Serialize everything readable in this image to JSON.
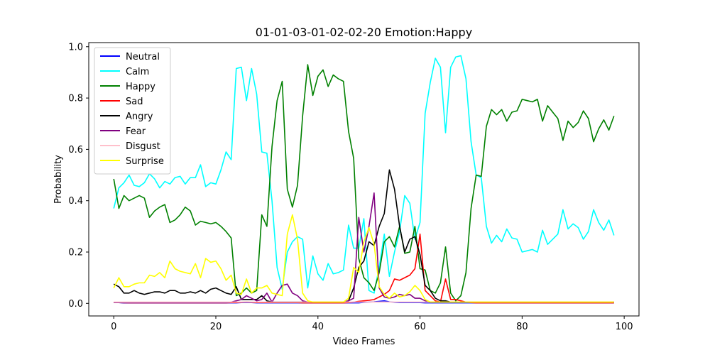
{
  "chart_data": {
    "type": "line",
    "title": "01-01-03-01-02-02-20 Emotion:Happy",
    "xlabel": "Video Frames",
    "ylabel": "Probability",
    "xlim": [
      -4.9,
      102.9
    ],
    "ylim": [
      -0.049,
      1.016
    ],
    "xticks": [
      0,
      20,
      40,
      60,
      80,
      100
    ],
    "yticks": [
      0.0,
      0.2,
      0.4,
      0.6,
      0.8,
      1.0
    ],
    "xtick_labels": [
      "0",
      "20",
      "40",
      "60",
      "80",
      "100"
    ],
    "ytick_labels": [
      "0.0",
      "0.2",
      "0.4",
      "0.6",
      "0.8",
      "1.0"
    ],
    "grid": false,
    "legend_position": "upper-left",
    "series": [
      {
        "name": "Neutral",
        "color": "#0000ff",
        "values": [
          0.003,
          0.003,
          0.002,
          0.002,
          0.002,
          0.002,
          0.002,
          0.002,
          0.002,
          0.002,
          0.002,
          0.002,
          0.002,
          0.002,
          0.002,
          0.002,
          0.002,
          0.002,
          0.002,
          0.002,
          0.002,
          0.002,
          0.002,
          0.002,
          0.002,
          0.003,
          0.003,
          0.003,
          0.002,
          0.002,
          0.002,
          0.002,
          0.002,
          0.002,
          0.002,
          0.002,
          0.002,
          0.002,
          0.002,
          0.002,
          0.002,
          0.002,
          0.002,
          0.002,
          0.002,
          0.002,
          0.002,
          0.002,
          0.002,
          0.004,
          0.005,
          0.006,
          0.008,
          0.01,
          0.006,
          0.004,
          0.003,
          0.003,
          0.003,
          0.003,
          0.003,
          0.002,
          0.002,
          0.002,
          0.002,
          0.002,
          0.002,
          0.002,
          0.002,
          0.002,
          0.002,
          0.002,
          0.002,
          0.002,
          0.002,
          0.002,
          0.002,
          0.002,
          0.002,
          0.002,
          0.002,
          0.002,
          0.002,
          0.002,
          0.002,
          0.002,
          0.002,
          0.002,
          0.002,
          0.002,
          0.002,
          0.002,
          0.002,
          0.002,
          0.002,
          0.002,
          0.002,
          0.002,
          0.002
        ]
      },
      {
        "name": "Calm",
        "color": "#00ffff",
        "values": [
          0.37,
          0.45,
          0.47,
          0.5,
          0.46,
          0.455,
          0.47,
          0.505,
          0.485,
          0.45,
          0.475,
          0.465,
          0.49,
          0.495,
          0.465,
          0.49,
          0.49,
          0.54,
          0.455,
          0.47,
          0.465,
          0.52,
          0.59,
          0.56,
          0.915,
          0.92,
          0.79,
          0.915,
          0.815,
          0.59,
          0.585,
          0.4,
          0.14,
          0.055,
          0.2,
          0.24,
          0.26,
          0.25,
          0.06,
          0.185,
          0.115,
          0.09,
          0.155,
          0.115,
          0.12,
          0.13,
          0.305,
          0.215,
          0.215,
          0.33,
          0.05,
          0.04,
          0.14,
          0.27,
          0.105,
          0.2,
          0.28,
          0.42,
          0.39,
          0.25,
          0.315,
          0.74,
          0.86,
          0.955,
          0.92,
          0.665,
          0.92,
          0.96,
          0.965,
          0.875,
          0.63,
          0.5,
          0.49,
          0.3,
          0.235,
          0.265,
          0.24,
          0.29,
          0.255,
          0.25,
          0.2,
          0.205,
          0.21,
          0.2,
          0.285,
          0.23,
          0.25,
          0.27,
          0.365,
          0.29,
          0.31,
          0.295,
          0.25,
          0.28,
          0.365,
          0.315,
          0.285,
          0.325,
          0.265
        ]
      },
      {
        "name": "Happy",
        "color": "#008000",
        "values": [
          0.485,
          0.37,
          0.42,
          0.4,
          0.41,
          0.42,
          0.41,
          0.335,
          0.36,
          0.375,
          0.385,
          0.315,
          0.325,
          0.345,
          0.375,
          0.36,
          0.305,
          0.32,
          0.315,
          0.31,
          0.315,
          0.3,
          0.28,
          0.255,
          0.03,
          0.04,
          0.06,
          0.04,
          0.05,
          0.345,
          0.3,
          0.61,
          0.79,
          0.865,
          0.445,
          0.375,
          0.46,
          0.73,
          0.93,
          0.81,
          0.885,
          0.91,
          0.845,
          0.89,
          0.875,
          0.865,
          0.67,
          0.565,
          0.175,
          0.1,
          0.08,
          0.05,
          0.12,
          0.24,
          0.26,
          0.22,
          0.3,
          0.195,
          0.2,
          0.3,
          0.135,
          0.13,
          0.05,
          0.04,
          0.08,
          0.22,
          0.04,
          0.01,
          0.03,
          0.12,
          0.37,
          0.5,
          0.495,
          0.69,
          0.755,
          0.735,
          0.755,
          0.71,
          0.745,
          0.75,
          0.795,
          0.79,
          0.785,
          0.795,
          0.71,
          0.77,
          0.745,
          0.72,
          0.635,
          0.71,
          0.685,
          0.705,
          0.75,
          0.72,
          0.63,
          0.68,
          0.715,
          0.675,
          0.73
        ]
      },
      {
        "name": "Sad",
        "color": "#ff0000",
        "values": [
          0.003,
          0.003,
          0.003,
          0.002,
          0.002,
          0.002,
          0.002,
          0.002,
          0.002,
          0.002,
          0.002,
          0.002,
          0.002,
          0.002,
          0.002,
          0.002,
          0.002,
          0.002,
          0.002,
          0.002,
          0.002,
          0.002,
          0.002,
          0.003,
          0.003,
          0.004,
          0.005,
          0.004,
          0.003,
          0.003,
          0.003,
          0.003,
          0.003,
          0.003,
          0.003,
          0.003,
          0.003,
          0.002,
          0.002,
          0.002,
          0.002,
          0.002,
          0.002,
          0.002,
          0.002,
          0.002,
          0.003,
          0.005,
          0.008,
          0.01,
          0.012,
          0.015,
          0.025,
          0.035,
          0.05,
          0.095,
          0.09,
          0.1,
          0.11,
          0.135,
          0.27,
          0.05,
          0.03,
          0.01,
          0.005,
          0.095,
          0.015,
          0.015,
          0.01,
          0.005,
          0.003,
          0.002,
          0.002,
          0.002,
          0.002,
          0.002,
          0.002,
          0.002,
          0.002,
          0.002,
          0.002,
          0.002,
          0.002,
          0.002,
          0.002,
          0.002,
          0.002,
          0.002,
          0.002,
          0.002,
          0.002,
          0.002,
          0.002,
          0.002,
          0.002,
          0.002,
          0.002,
          0.002,
          0.002
        ]
      },
      {
        "name": "Angry",
        "color": "#000000",
        "values": [
          0.075,
          0.065,
          0.04,
          0.04,
          0.05,
          0.04,
          0.035,
          0.04,
          0.045,
          0.045,
          0.04,
          0.05,
          0.05,
          0.04,
          0.04,
          0.045,
          0.04,
          0.05,
          0.04,
          0.055,
          0.06,
          0.05,
          0.04,
          0.035,
          0.065,
          0.015,
          0.015,
          0.015,
          0.015,
          0.03,
          0.01,
          0.005,
          0.005,
          0.005,
          0.005,
          0.005,
          0.005,
          0.005,
          0.005,
          0.005,
          0.005,
          0.005,
          0.005,
          0.005,
          0.005,
          0.005,
          0.01,
          0.06,
          0.14,
          0.165,
          0.24,
          0.225,
          0.3,
          0.35,
          0.52,
          0.445,
          0.3,
          0.2,
          0.25,
          0.26,
          0.19,
          0.07,
          0.05,
          0.02,
          0.01,
          0.01,
          0.005,
          0.005,
          0.005,
          0.005,
          0.005,
          0.005,
          0.005,
          0.005,
          0.005,
          0.005,
          0.005,
          0.005,
          0.005,
          0.005,
          0.005,
          0.005,
          0.005,
          0.005,
          0.005,
          0.005,
          0.005,
          0.005,
          0.005,
          0.005,
          0.005,
          0.005,
          0.005,
          0.005,
          0.005,
          0.005,
          0.005,
          0.005,
          0.005
        ]
      },
      {
        "name": "Fear",
        "color": "#800080",
        "values": [
          0.003,
          0.003,
          0.002,
          0.002,
          0.002,
          0.002,
          0.002,
          0.002,
          0.002,
          0.002,
          0.002,
          0.002,
          0.002,
          0.002,
          0.002,
          0.002,
          0.002,
          0.002,
          0.002,
          0.002,
          0.002,
          0.002,
          0.002,
          0.005,
          0.01,
          0.015,
          0.03,
          0.02,
          0.01,
          0.015,
          0.04,
          0.005,
          0.04,
          0.07,
          0.075,
          0.04,
          0.03,
          0.01,
          0.005,
          0.005,
          0.005,
          0.005,
          0.005,
          0.005,
          0.005,
          0.005,
          0.01,
          0.02,
          0.335,
          0.2,
          0.3,
          0.43,
          0.06,
          0.025,
          0.02,
          0.025,
          0.035,
          0.03,
          0.035,
          0.02,
          0.02,
          0.01,
          0.005,
          0.005,
          0.005,
          0.005,
          0.005,
          0.005,
          0.005,
          0.005,
          0.005,
          0.005,
          0.005,
          0.005,
          0.005,
          0.005,
          0.005,
          0.005,
          0.005,
          0.005,
          0.005,
          0.005,
          0.005,
          0.005,
          0.005,
          0.005,
          0.005,
          0.005,
          0.005,
          0.005,
          0.005,
          0.005,
          0.005,
          0.005,
          0.005,
          0.005,
          0.005,
          0.005,
          0.005
        ]
      },
      {
        "name": "Disgust",
        "color": "#ffc0cb",
        "values": [
          0.005,
          0.005,
          0.005,
          0.005,
          0.005,
          0.005,
          0.005,
          0.005,
          0.005,
          0.005,
          0.005,
          0.005,
          0.005,
          0.005,
          0.005,
          0.005,
          0.005,
          0.005,
          0.005,
          0.005,
          0.005,
          0.005,
          0.005,
          0.005,
          0.005,
          0.005,
          0.005,
          0.005,
          0.005,
          0.005,
          0.005,
          0.005,
          0.005,
          0.005,
          0.005,
          0.005,
          0.005,
          0.005,
          0.005,
          0.005,
          0.005,
          0.005,
          0.005,
          0.005,
          0.005,
          0.005,
          0.005,
          0.005,
          0.005,
          0.005,
          0.005,
          0.005,
          0.005,
          0.005,
          0.005,
          0.005,
          0.005,
          0.005,
          0.005,
          0.005,
          0.005,
          0.005,
          0.005,
          0.005,
          0.005,
          0.005,
          0.005,
          0.005,
          0.005,
          0.005,
          0.005,
          0.005,
          0.005,
          0.005,
          0.005,
          0.005,
          0.005,
          0.005,
          0.005,
          0.005,
          0.005,
          0.005,
          0.005,
          0.005,
          0.005,
          0.005,
          0.005,
          0.005,
          0.005,
          0.005,
          0.005,
          0.005,
          0.005,
          0.005,
          0.005,
          0.005,
          0.005,
          0.005,
          0.005
        ]
      },
      {
        "name": "Surprise",
        "color": "#ffff00",
        "values": [
          0.06,
          0.1,
          0.065,
          0.065,
          0.075,
          0.08,
          0.08,
          0.11,
          0.105,
          0.12,
          0.1,
          0.165,
          0.135,
          0.125,
          0.12,
          0.115,
          0.155,
          0.1,
          0.175,
          0.16,
          0.165,
          0.135,
          0.09,
          0.11,
          0.04,
          0.035,
          0.095,
          0.04,
          0.06,
          0.06,
          0.07,
          0.04,
          0.035,
          0.03,
          0.27,
          0.345,
          0.25,
          0.04,
          0.01,
          0.005,
          0.005,
          0.005,
          0.005,
          0.005,
          0.005,
          0.005,
          0.02,
          0.14,
          0.12,
          0.24,
          0.295,
          0.23,
          0.065,
          0.035,
          0.02,
          0.04,
          0.025,
          0.03,
          0.045,
          0.07,
          0.05,
          0.015,
          0.005,
          0.005,
          0.005,
          0.005,
          0.005,
          0.005,
          0.005,
          0.005,
          0.005,
          0.005,
          0.005,
          0.005,
          0.005,
          0.005,
          0.005,
          0.005,
          0.005,
          0.005,
          0.005,
          0.005,
          0.005,
          0.005,
          0.005,
          0.005,
          0.005,
          0.005,
          0.005,
          0.005,
          0.005,
          0.005,
          0.005,
          0.005,
          0.005,
          0.005,
          0.005,
          0.005,
          0.005
        ]
      }
    ]
  }
}
